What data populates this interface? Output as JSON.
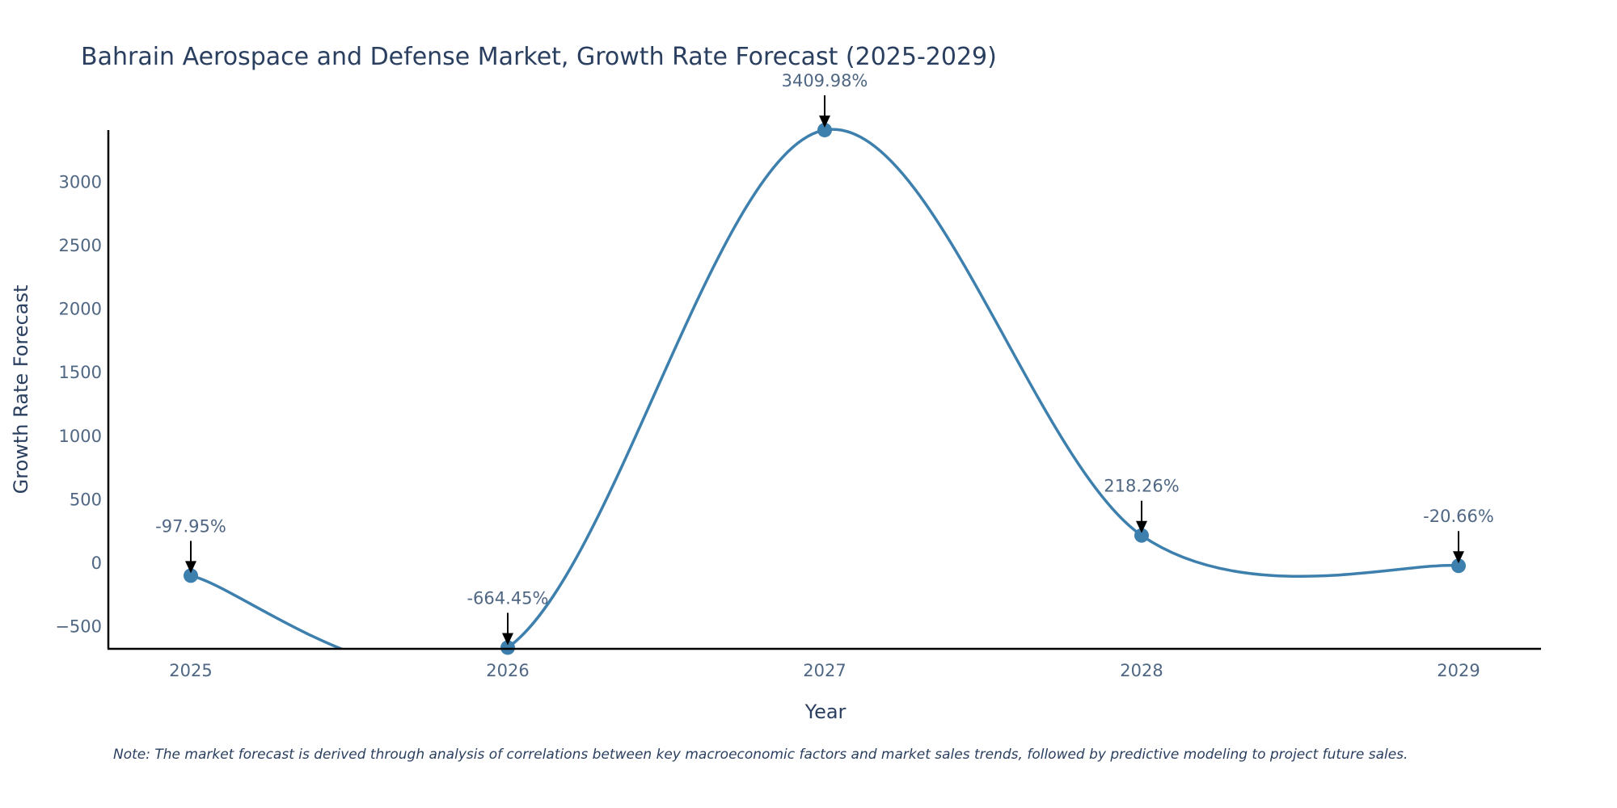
{
  "chart_data": {
    "type": "line",
    "title": "Bahrain Aerospace and Defense Market, Growth Rate Forecast (2025-2029)",
    "xlabel": "Year",
    "ylabel": "Growth Rate Forecast",
    "x": [
      "2025",
      "2026",
      "2027",
      "2028",
      "2029"
    ],
    "series": [
      {
        "name": "Growth Rate Forecast",
        "values": [
          -97.95,
          -664.45,
          3409.98,
          218.26,
          -20.66
        ],
        "labels": [
          "-97.95%",
          "-664.45%",
          "3409.98%",
          "218.26%",
          "-20.66%"
        ]
      }
    ],
    "yticks": [
      -500,
      0,
      500,
      1000,
      1500,
      2000,
      2500,
      3000
    ],
    "ytick_labels": [
      "−500",
      "0",
      "500",
      "1000",
      "1500",
      "2000",
      "2500",
      "3000"
    ],
    "ylim": [
      -680,
      3420
    ],
    "grid": false,
    "line_color": "#3d7fad",
    "note": "Note: The market forecast is derived through analysis of correlations between key macroeconomic factors and market sales trends, followed by predictive modeling to project future sales."
  }
}
